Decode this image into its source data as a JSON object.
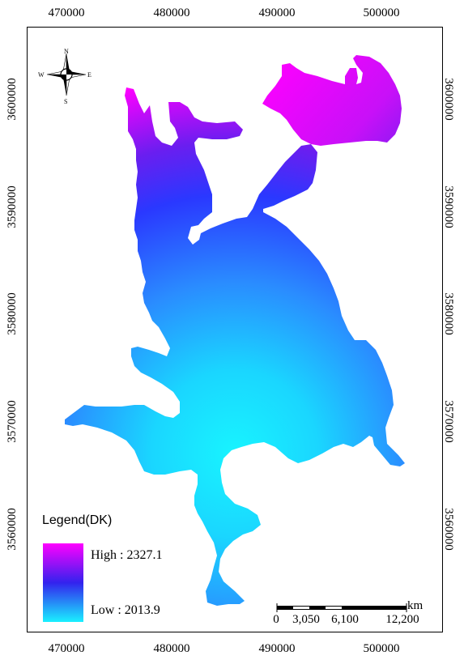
{
  "map": {
    "x_ticks": [
      "470000",
      "480000",
      "490000",
      "500000"
    ],
    "y_ticks": [
      "3600000",
      "3590000",
      "3580000",
      "3570000",
      "3560000"
    ],
    "color_ramp": [
      "#ff00ff",
      "#8a22ee",
      "#2a2aff",
      "#2a80ff",
      "#1ad0ff",
      "#18f0ff"
    ]
  },
  "legend": {
    "title": "Legend(DK)",
    "high_label": "High : 2327.1",
    "low_label": "Low : 2013.9",
    "high_color": "#ff00ff",
    "mid_color": "#3322ee",
    "low_color": "#1af0ff"
  },
  "scalebar": {
    "unit": "km",
    "labels": [
      "0",
      "3,050",
      "6,100",
      "12,200"
    ]
  },
  "compass": {
    "north": "N",
    "south": "S",
    "east": "E",
    "west": "W"
  }
}
